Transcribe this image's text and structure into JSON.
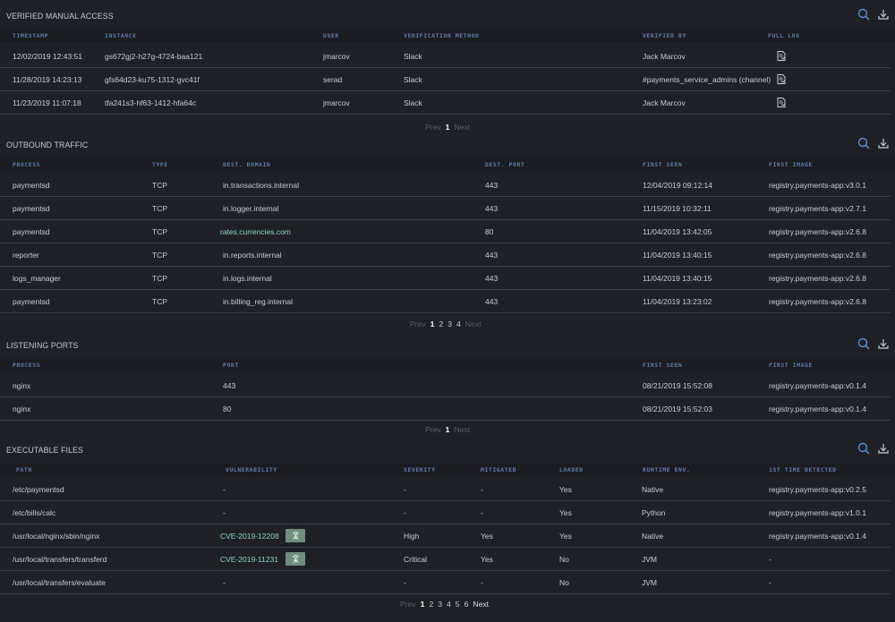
{
  "colors": {
    "background": "#1e2026",
    "header_text": "#5f7fb0",
    "link": "#8fd6c1",
    "badge": "#6e8f7f",
    "icon_blue": "#5b8fd6"
  },
  "manual": {
    "title": "VERIFIED MANUAL ACCESS",
    "headers": {
      "timestamp": "TIMESTAMP",
      "instance": "INSTANCE",
      "user": "USER",
      "method": "VERIFICATION METHOD",
      "verified_by": "VERIFIED BY",
      "full_log": "FULL LOG"
    },
    "rows": [
      {
        "timestamp": "12/02/2019 12:43:51",
        "instance": "gs672gj2-h27g-4724-baa121",
        "user": "jmarcov",
        "method": "Slack",
        "verified_by": "Jack Marcov"
      },
      {
        "timestamp": "11/28/2019 14:23:13",
        "instance": "gfs64d23-ku75-1312-gvc41f",
        "user": "serad",
        "method": "Slack",
        "verified_by": "#payments_service_admins (channel)"
      },
      {
        "timestamp": "11/23/2019 11:07:18",
        "instance": "tfa241s3-hf63-1412-hfa64c",
        "user": "jmarcov",
        "method": "Slack",
        "verified_by": "Jack Marcov"
      }
    ],
    "pager": {
      "prev": "Prev",
      "pages": [
        "1"
      ],
      "next": "Next"
    }
  },
  "outbound": {
    "title": "OUTBOUND TRAFFIC",
    "headers": {
      "process": "PROCESS",
      "type": "TYPE",
      "domain": "DEST. DOMAIN",
      "port": "DEST. PORT",
      "first_seen": "FIRST SEEN",
      "first_image": "FIRST IMAGE"
    },
    "rows": [
      {
        "process": "paymentsd",
        "type": "TCP",
        "domain": "in.transactions.internal",
        "port": "443",
        "first_seen": "12/04/2019 09:12:14",
        "first_image": "registry.payments-app:v3.0.1"
      },
      {
        "process": "paymentsd",
        "type": "TCP",
        "domain": "in.logger.internal",
        "port": "443",
        "first_seen": "11/15/2019 10:32:11",
        "first_image": "registry.payments-app:v2.7.1"
      },
      {
        "process": "paymentsd",
        "type": "TCP",
        "domain": "rates.currencies.com",
        "port": "80",
        "first_seen": "11/04/2019 13:42:05",
        "first_image": "registry.payments-app:v2.6.8"
      },
      {
        "process": "reporter",
        "type": "TCP",
        "domain": "in.reports.internal",
        "port": "443",
        "first_seen": "11/04/2019 13:40:15",
        "first_image": "registry.payments-app:v2.6.8"
      },
      {
        "process": "logs_manager",
        "type": "TCP",
        "domain": "in.logs.internal",
        "port": "443",
        "first_seen": "11/04/2019 13:40:15",
        "first_image": "registry.payments-app:v2.6.8"
      },
      {
        "process": "paymentsd",
        "type": "TCP",
        "domain": "in.billing_reg.internal",
        "port": "443",
        "first_seen": "11/04/2019 13:23:02",
        "first_image": "registry.payments-app:v2.6.8"
      }
    ],
    "pager": {
      "prev": "Prev",
      "pages": [
        "1",
        "2",
        "3",
        "4"
      ],
      "next": "Next"
    }
  },
  "listening": {
    "title": "LISTENING PORTS",
    "headers": {
      "process": "PROCESS",
      "port": "PORT",
      "first_seen": "FIRST SEEN",
      "first_image": "FIRST IMAGE"
    },
    "rows": [
      {
        "process": "nginx",
        "port": "443",
        "first_seen": "08/21/2019 15:52:08",
        "first_image": "registry.payments-app:v0.1.4"
      },
      {
        "process": "nginx",
        "port": "80",
        "first_seen": "08/21/2019 15:52:03",
        "first_image": "registry.payments-app:v0.1.4"
      }
    ],
    "pager": {
      "prev": "Prev",
      "pages": [
        "1"
      ],
      "next": "Next"
    }
  },
  "executables": {
    "title": "EXECUTABLE FILES",
    "headers": {
      "path": "PATH",
      "vuln": "VULNERABILITY",
      "severity": "SEVERITY",
      "mitigated": "MITIGATED",
      "loaded": "LOADED",
      "runtime": "RUNTIME ENV.",
      "first_detected": "1ST TIME DETECTED"
    },
    "rows": [
      {
        "path": "/etc/paymentsd",
        "vuln": "-",
        "severity": "-",
        "mitigated": "-",
        "loaded": "Yes",
        "runtime": "Native",
        "first_detected": "registry.payments-app:v0.2.5"
      },
      {
        "path": "/etc/bills/calc",
        "vuln": "-",
        "severity": "-",
        "mitigated": "-",
        "loaded": "Yes",
        "runtime": "Python",
        "first_detected": "registry.payments-app:v1.0.1"
      },
      {
        "path": "/usr/local/nginx/sbin/nginx",
        "vuln": "CVE-2019-12208",
        "severity": "High",
        "mitigated": "Yes",
        "loaded": "Yes",
        "runtime": "Native",
        "first_detected": "registry.payments-app:v0.1.4"
      },
      {
        "path": "/usr/local/transfers/transferd",
        "vuln": "CVE-2019-11231",
        "severity": "Critical",
        "mitigated": "Yes",
        "loaded": "No",
        "runtime": "JVM",
        "first_detected": "-"
      },
      {
        "path": "/usr/local/transfers/evaluate",
        "vuln": "-",
        "severity": "-",
        "mitigated": "-",
        "loaded": "No",
        "runtime": "JVM",
        "first_detected": "-"
      }
    ],
    "pager": {
      "prev": "Prev",
      "pages": [
        "1",
        "2",
        "3",
        "4",
        "5",
        "6"
      ],
      "next": "Next"
    }
  }
}
